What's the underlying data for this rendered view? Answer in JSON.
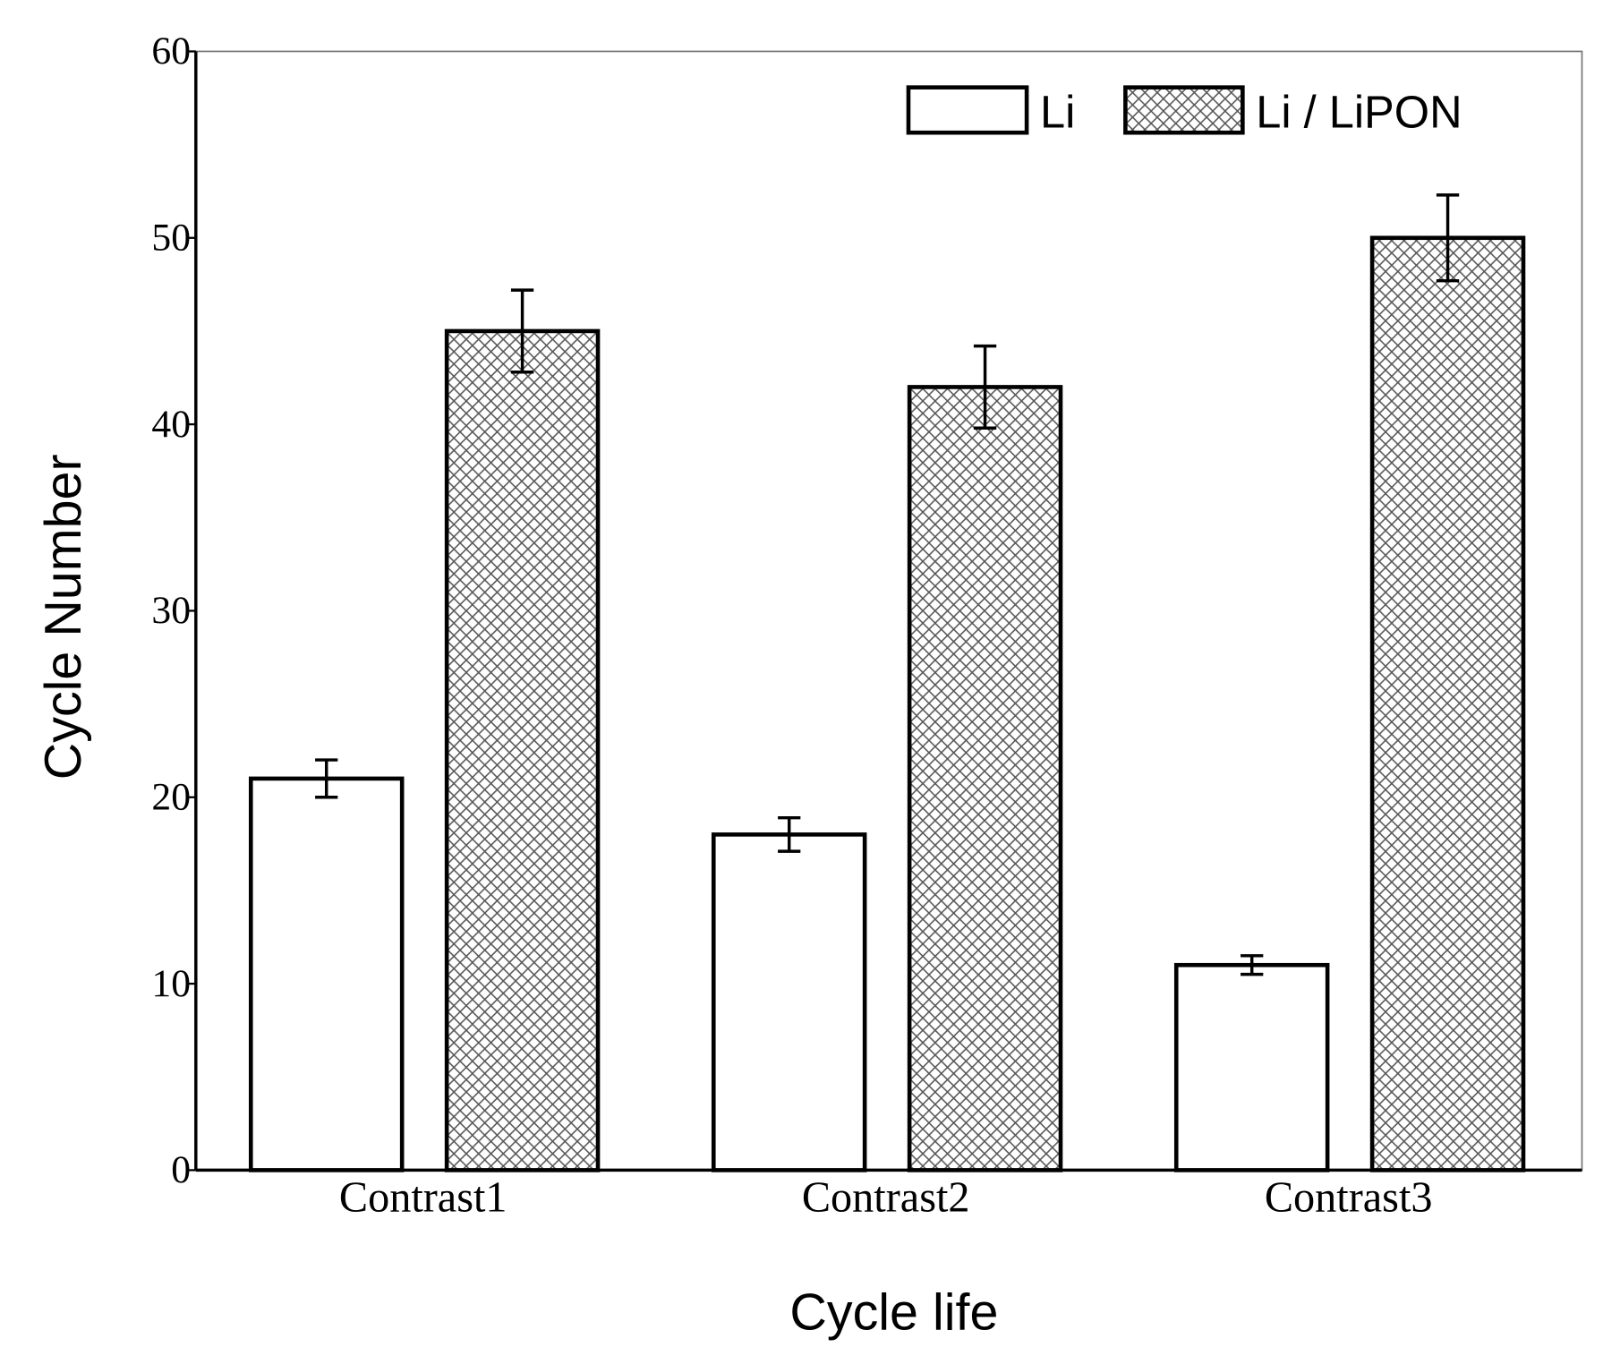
{
  "chart_data": {
    "type": "bar",
    "title": "",
    "xlabel": "Cycle life",
    "ylabel": "Cycle Number",
    "ylim": [
      0,
      60
    ],
    "yticks": [
      0,
      10,
      20,
      30,
      40,
      50,
      60
    ],
    "categories": [
      "Contrast1",
      "Contrast2",
      "Contrast3"
    ],
    "series": [
      {
        "name": "Li",
        "values": [
          21,
          18,
          11
        ],
        "errors": [
          1.0,
          0.9,
          0.5
        ],
        "fill": "plain"
      },
      {
        "name": "Li / LiPON",
        "values": [
          45,
          42,
          50
        ],
        "errors": [
          2.2,
          2.2,
          2.3
        ],
        "fill": "crosshatch"
      }
    ],
    "legend_position": "top-right",
    "grid": false
  }
}
